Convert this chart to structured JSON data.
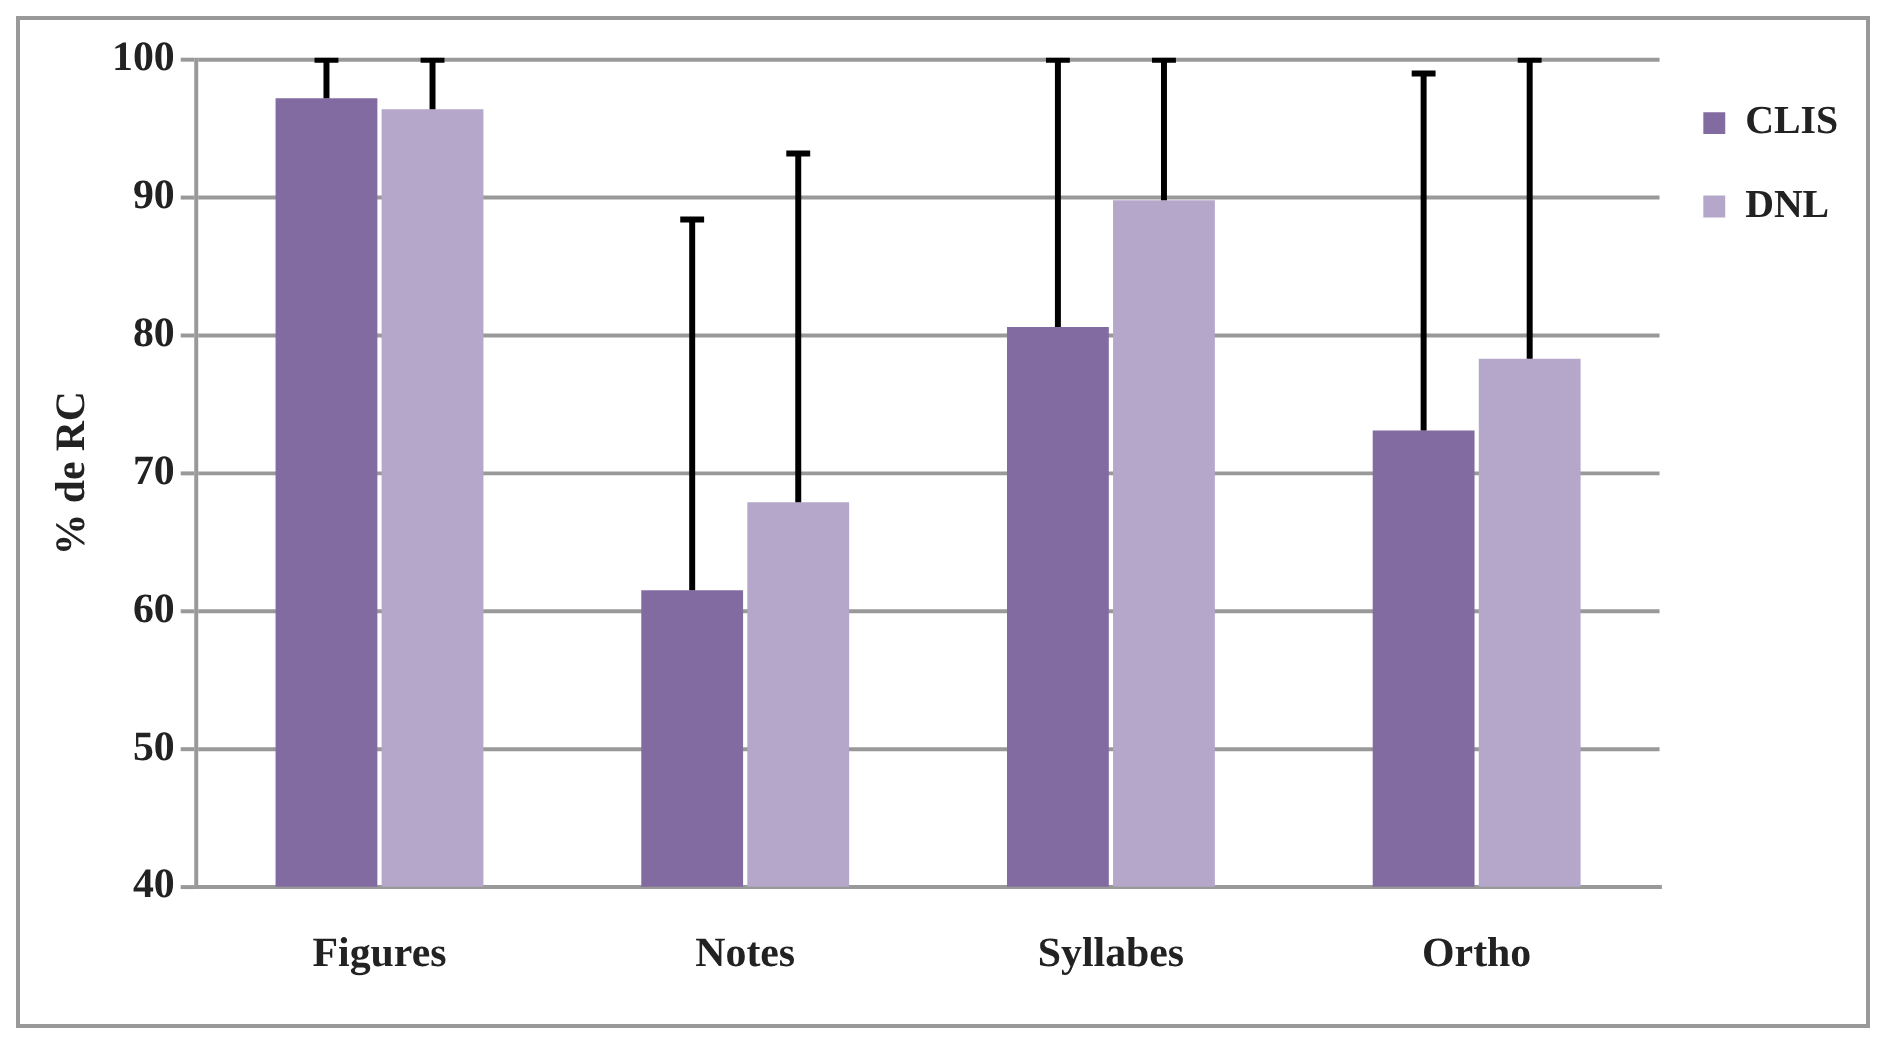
{
  "chart_data": {
    "type": "bar",
    "ylabel": "% de RC",
    "categories": [
      "Figures",
      "Notes",
      "Syllabes",
      "Ortho"
    ],
    "series": [
      {
        "name": "CLIS",
        "color": "#826ba0",
        "values": [
          97.2,
          61.5,
          80.6,
          73.1
        ],
        "errors": [
          [
            97.2,
            100
          ],
          [
            61.5,
            88.4
          ],
          [
            80.6,
            100
          ],
          [
            73.1,
            99
          ]
        ]
      },
      {
        "name": "DNL",
        "color": "#b4a7ca",
        "values": [
          96.4,
          67.9,
          89.8,
          78.3
        ],
        "errors": [
          [
            96.4,
            100
          ],
          [
            67.9,
            93.2
          ],
          [
            89.8,
            100
          ],
          [
            78.3,
            100
          ]
        ]
      }
    ],
    "ylim": [
      40,
      100
    ],
    "yticks": [
      40,
      50,
      60,
      70,
      80,
      90,
      100
    ],
    "grid": "y",
    "legend": "top right"
  }
}
